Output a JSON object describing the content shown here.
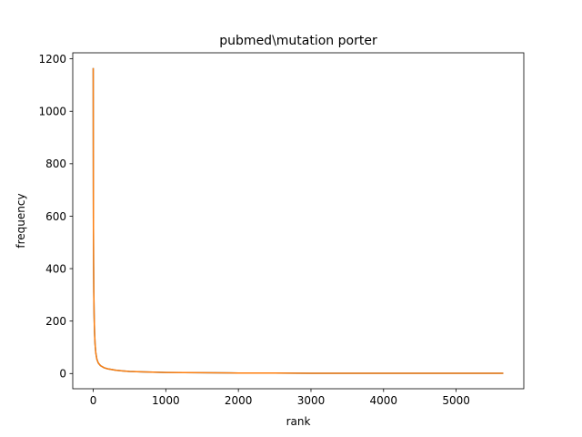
{
  "chart_data": {
    "type": "line",
    "title": "pubmed\\mutation porter",
    "xlabel": "rank",
    "ylabel": "frequency",
    "xlim": [
      -282,
      5932
    ],
    "ylim": [
      -58,
      1223
    ],
    "xticks": [
      0,
      1000,
      2000,
      3000,
      4000,
      5000
    ],
    "yticks": [
      0,
      200,
      400,
      600,
      800,
      1000,
      1200
    ],
    "grid": false,
    "series": [
      {
        "color": "#1f77b4",
        "x": [
          0,
          1,
          2,
          3,
          5,
          8,
          12,
          18,
          25,
          35,
          50,
          70,
          100,
          150,
          200,
          300,
          400,
          500,
          700,
          1000,
          1500,
          2000,
          2500,
          3000,
          4000,
          5000,
          5650
        ],
        "y": [
          1165,
          900,
          700,
          560,
          420,
          310,
          230,
          160,
          115,
          80,
          55,
          40,
          30,
          22,
          18,
          13,
          10,
          8,
          6,
          4,
          3,
          2,
          2,
          1,
          1,
          1,
          1
        ]
      },
      {
        "color": "#ff7f0e",
        "x": [
          0,
          1,
          2,
          3,
          5,
          8,
          12,
          18,
          25,
          35,
          50,
          70,
          100,
          150,
          200,
          300,
          400,
          500,
          700,
          1000,
          1500,
          2000,
          2500,
          3000,
          4000,
          5000,
          5650
        ],
        "y": [
          1165,
          900,
          700,
          560,
          420,
          310,
          230,
          160,
          115,
          80,
          55,
          40,
          30,
          22,
          18,
          13,
          10,
          8,
          6,
          4,
          3,
          2,
          2,
          1,
          1,
          1,
          1
        ]
      }
    ]
  }
}
